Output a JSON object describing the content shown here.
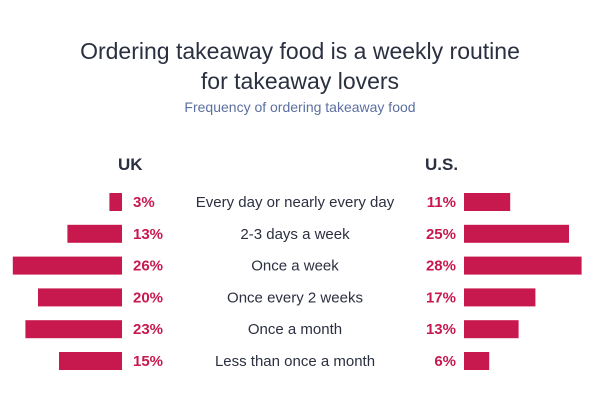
{
  "chart_data": {
    "type": "bar",
    "title_line1": "Ordering takeaway food is a weekly routine",
    "title_line2": "for takeaway lovers",
    "subtitle": "Frequency of ordering takeaway food",
    "categories": [
      "Every day or nearly every day",
      "2-3 days a week",
      "Once a week",
      "Once every 2 weeks",
      "Once a month",
      "Less than once a month"
    ],
    "series": [
      {
        "name": "UK",
        "values": [
          3,
          13,
          26,
          20,
          23,
          15
        ],
        "labels": [
          "3%",
          "13%",
          "26%",
          "20%",
          "23%",
          "15%"
        ]
      },
      {
        "name": "U.S.",
        "values": [
          11,
          25,
          28,
          17,
          13,
          6
        ],
        "labels": [
          "11%",
          "25%",
          "28%",
          "17%",
          "13%",
          "6%"
        ]
      }
    ],
    "bar_color": "#c8194f",
    "label_color": "#c8194f",
    "unit": "%"
  }
}
